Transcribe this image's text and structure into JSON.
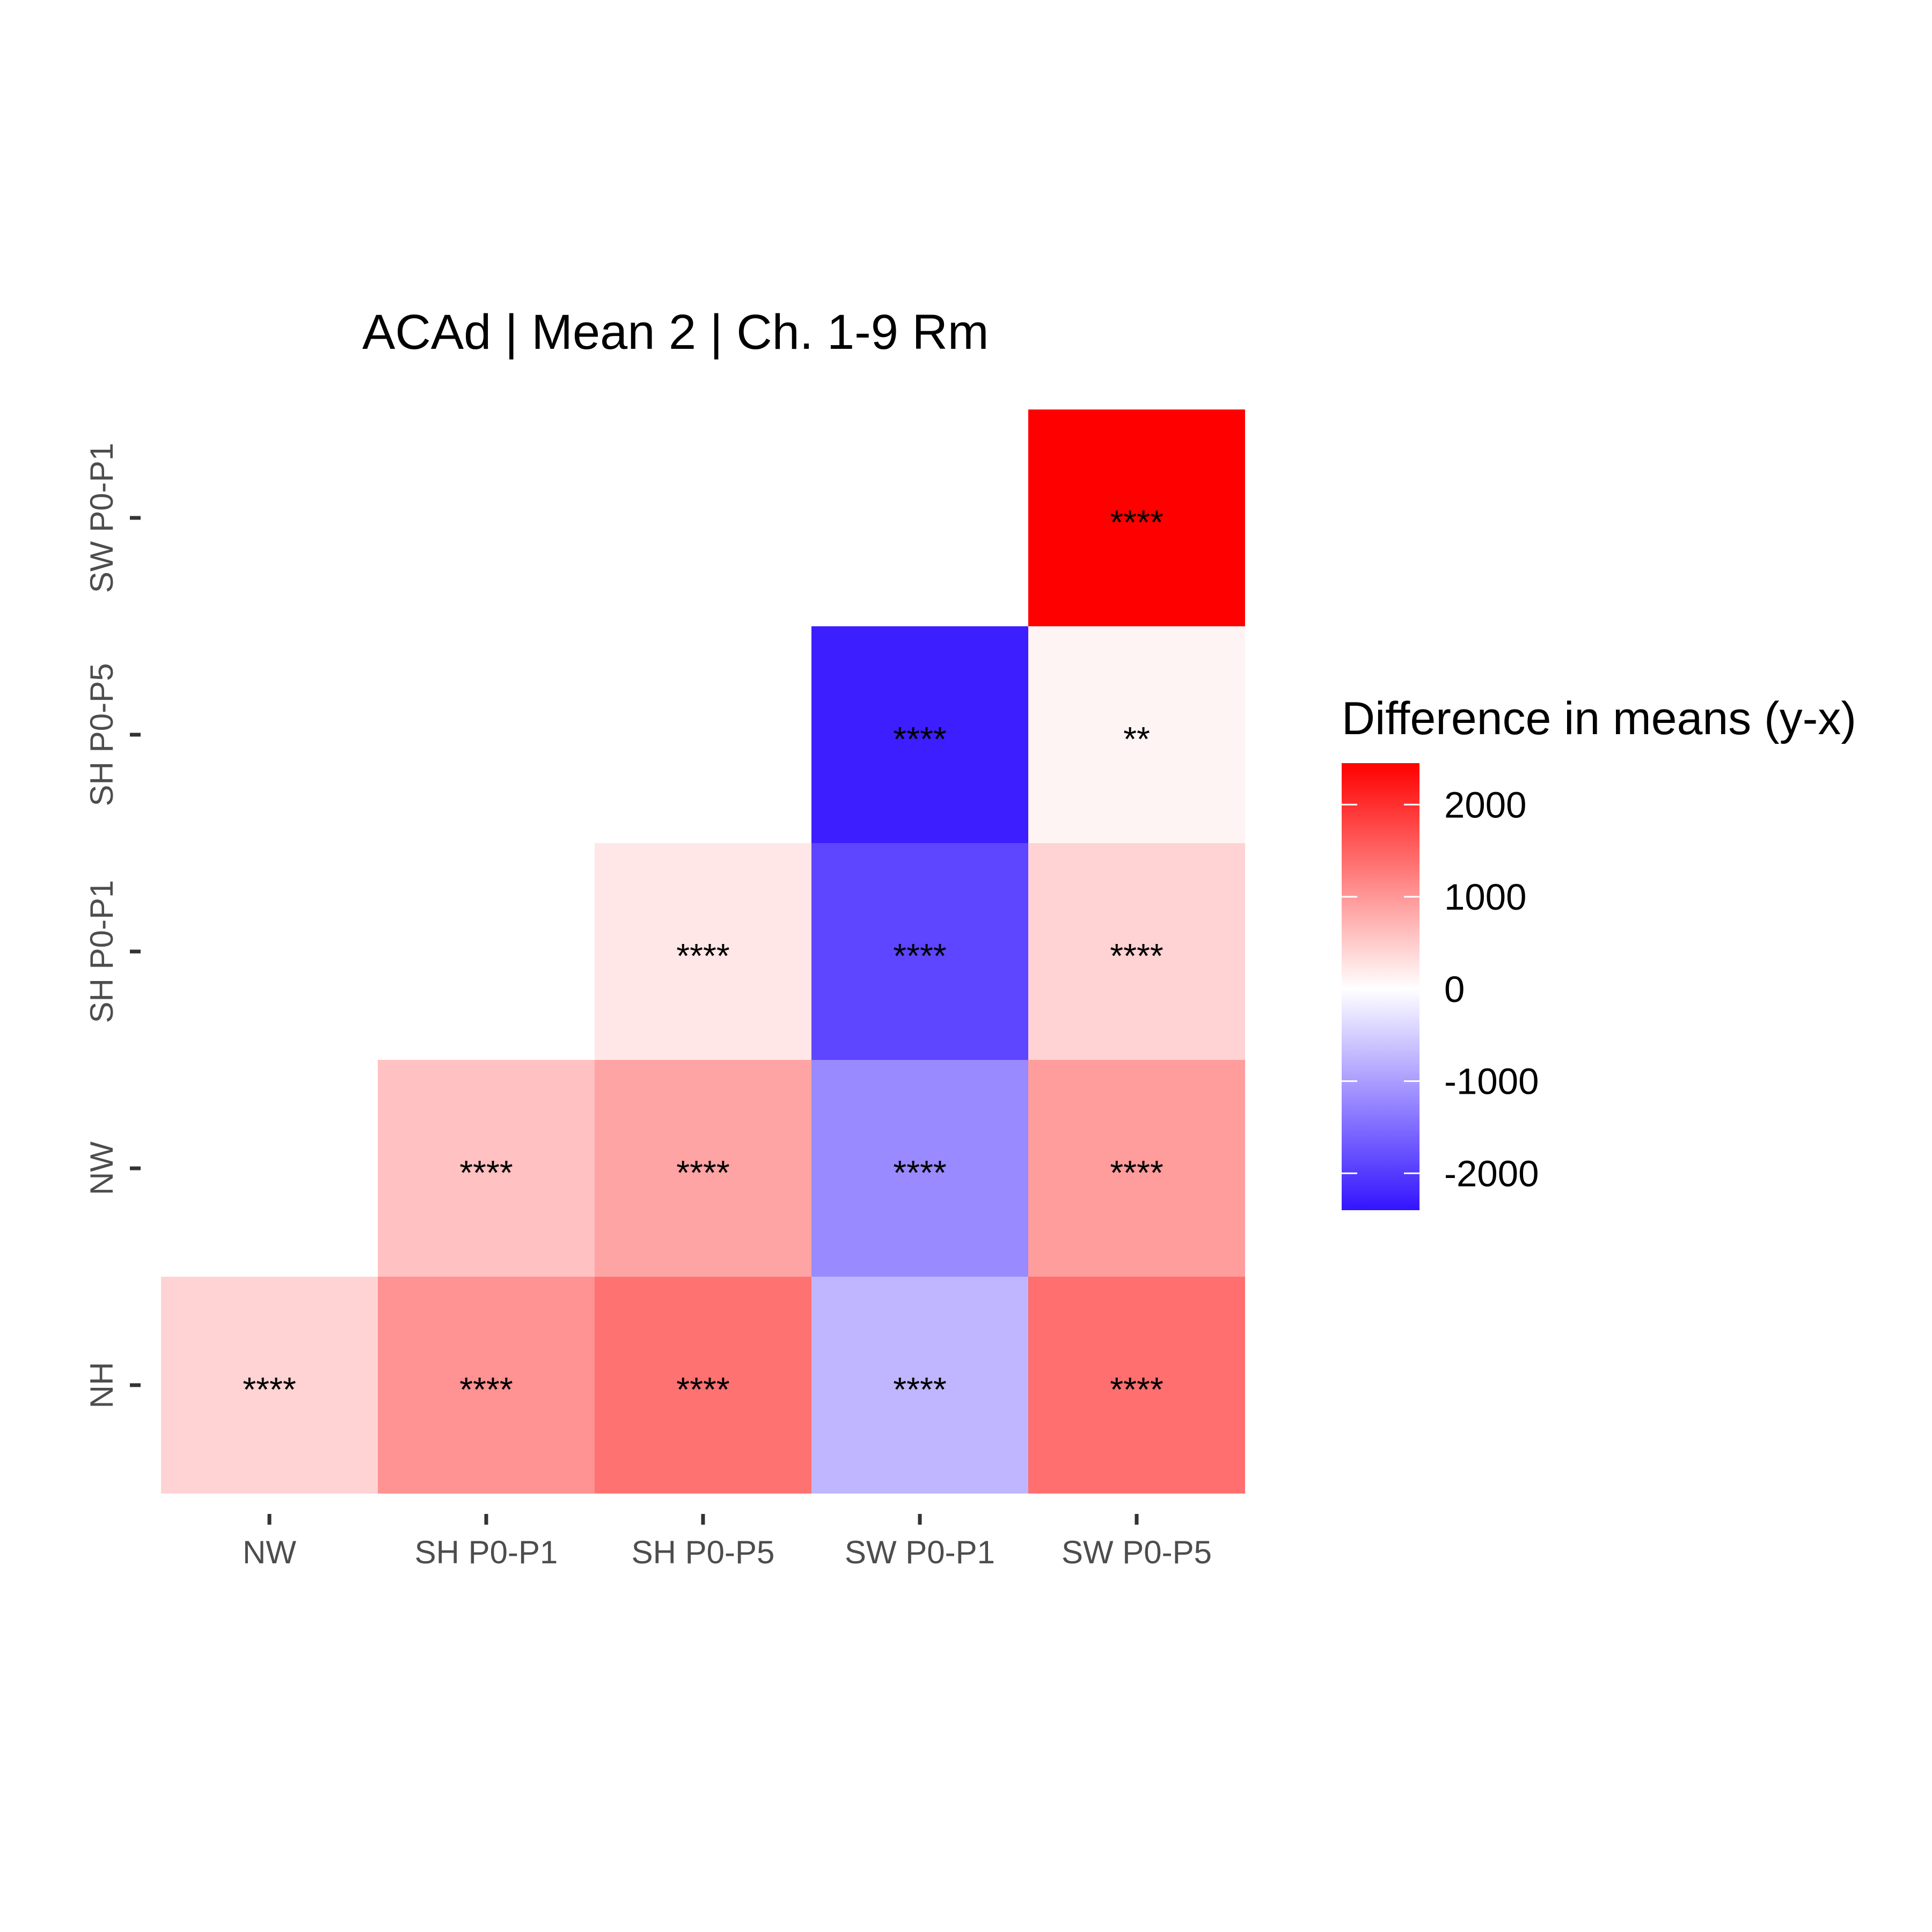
{
  "chart_data": {
    "type": "heatmap",
    "title": "ACAd | Mean 2 | Ch. 1-9 Rm",
    "x_categories": [
      "NW",
      "SH P0-P1",
      "SH P0-P5",
      "SW P0-P1",
      "SW P0-P5"
    ],
    "y_categories": [
      "NH",
      "NW",
      "SH P0-P1",
      "SH P0-P5",
      "SW P0-P1"
    ],
    "cells": [
      {
        "x": "NW",
        "y": "NH",
        "value": 420,
        "label": "****"
      },
      {
        "x": "SH P0-P1",
        "y": "NH",
        "value": 1050,
        "label": "****"
      },
      {
        "x": "SH P0-P5",
        "y": "NH",
        "value": 1350,
        "label": "****"
      },
      {
        "x": "SW P0-P1",
        "y": "NH",
        "value": -750,
        "label": "****"
      },
      {
        "x": "SW P0-P5",
        "y": "NH",
        "value": 1380,
        "label": "****"
      },
      {
        "x": "SH P0-P1",
        "y": "NW",
        "value": 600,
        "label": "****"
      },
      {
        "x": "SH P0-P5",
        "y": "NW",
        "value": 870,
        "label": "****"
      },
      {
        "x": "SW P0-P1",
        "y": "NW",
        "value": -1200,
        "label": "****"
      },
      {
        "x": "SW P0-P5",
        "y": "NW",
        "value": 950,
        "label": "****"
      },
      {
        "x": "SH P0-P5",
        "y": "SH P0-P1",
        "value": 230,
        "label": "****"
      },
      {
        "x": "SW P0-P1",
        "y": "SH P0-P1",
        "value": -1900,
        "label": "****"
      },
      {
        "x": "SW P0-P5",
        "y": "SH P0-P1",
        "value": 420,
        "label": "****"
      },
      {
        "x": "SW P0-P1",
        "y": "SH P0-P5",
        "value": -2300,
        "label": "****"
      },
      {
        "x": "SW P0-P5",
        "y": "SH P0-P5",
        "value": 110,
        "label": "**"
      },
      {
        "x": "SW P0-P5",
        "y": "SW P0-P1",
        "value": 2450,
        "label": "****"
      }
    ],
    "legend": {
      "title": "Difference in means (y-x)",
      "min": -2400,
      "max": 2450,
      "ticks": [
        2000,
        1000,
        0,
        -1000,
        -2000
      ],
      "tick_labels": [
        "2000",
        "1000",
        "0",
        "-1000",
        "-2000"
      ],
      "low_color": "#3314ff",
      "mid_color": "#ffffff",
      "high_color": "#ff0000"
    },
    "grid": false
  }
}
